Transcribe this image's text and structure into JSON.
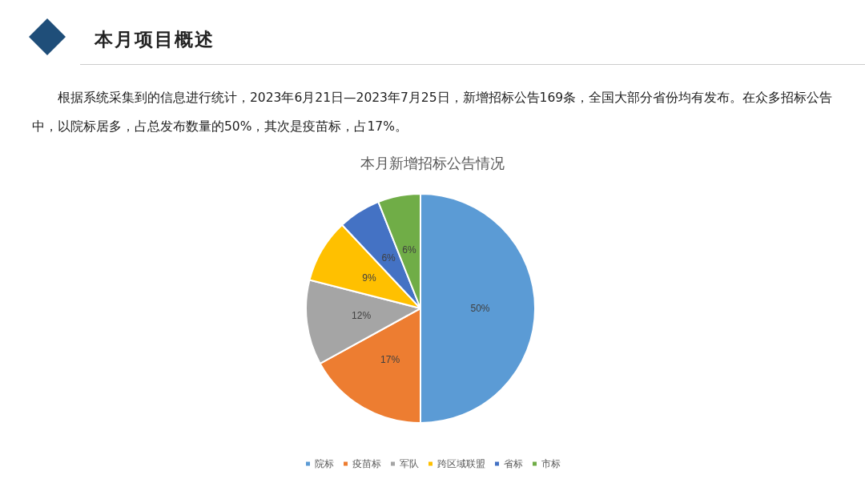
{
  "chart_data": {
    "type": "pie",
    "title": "本月新增招标公告情况",
    "annotations": [
      "本月项目概述",
      "根据系统采集到的信息进行统计，2023年6月21日—2023年7月25日，新增招标公告169条，全国大部分省份均有发布。在众多招标公告中，以院标居多，占总发布数量的50%，其次是疫苗标，占17%。"
    ],
    "categories": [
      "院标",
      "疫苗标",
      "军队",
      "跨区域联盟",
      "省标",
      "市标"
    ],
    "values": [
      50,
      17,
      12,
      9,
      6,
      6
    ],
    "value_labels": [
      "50%",
      "17%",
      "12%",
      "9%",
      "6%",
      "6%"
    ],
    "colors": [
      "#5b9bd5",
      "#ed7d31",
      "#a5a5a5",
      "#ffc000",
      "#4472c4",
      "#70ad47"
    ],
    "legend": "bottom"
  }
}
